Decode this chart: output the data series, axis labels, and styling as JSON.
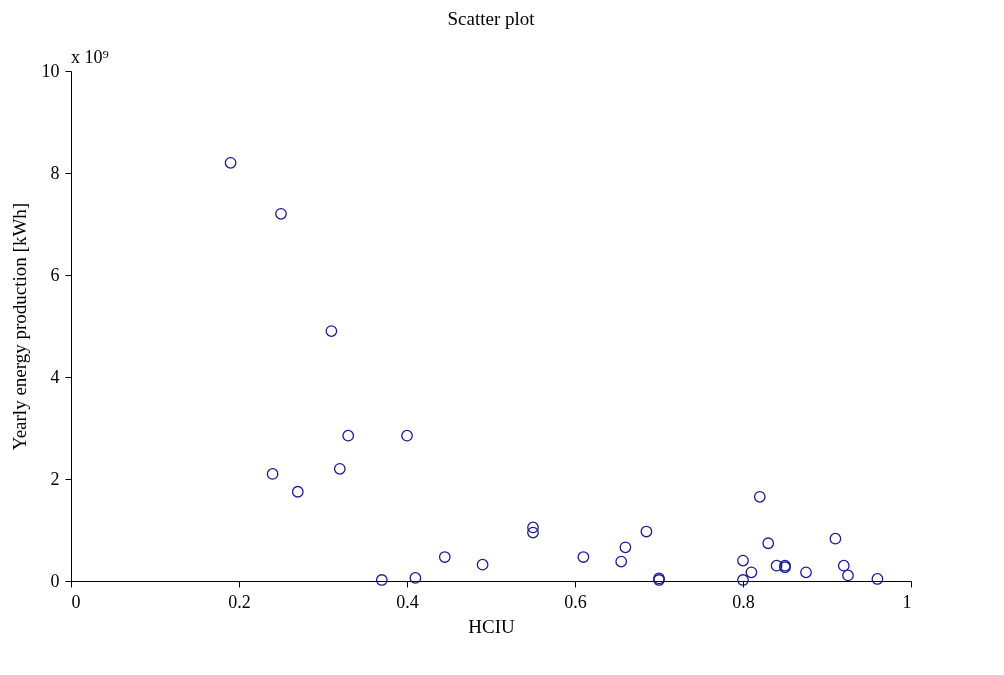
{
  "chart_data": {
    "type": "scatter",
    "title": "Scatter plot",
    "xlabel": "HCIU",
    "ylabel": "Yearly energy production [kWh]",
    "annotations": [
      "x 10⁹"
    ],
    "x": [
      0.19,
      0.25,
      0.31,
      0.24,
      0.27,
      0.32,
      0.33,
      0.4,
      0.37,
      0.41,
      0.445,
      0.49,
      0.55,
      0.55,
      0.61,
      0.655,
      0.66,
      0.685,
      0.7,
      0.7,
      0.8,
      0.8,
      0.81,
      0.82,
      0.83,
      0.84,
      0.85,
      0.85,
      0.875,
      0.91,
      0.92,
      0.925,
      0.96
    ],
    "series": [
      {
        "color": "#1a1a8c",
        "values": [
          8.2,
          7.2,
          4.9,
          2.1,
          1.75,
          2.2,
          2.85,
          2.85,
          0.02,
          0.06,
          0.47,
          0.32,
          1.05,
          0.95,
          0.47,
          0.38,
          0.66,
          0.97,
          0.02,
          0.05,
          0.4,
          0.02,
          0.17,
          1.65,
          0.74,
          0.3,
          0.3,
          0.27,
          0.17,
          0.83,
          0.3,
          0.11,
          0.04
        ]
      }
    ],
    "xlim": [
      0,
      1
    ],
    "xticks": [
      0,
      0.2,
      0.4,
      0.6,
      0.8,
      1
    ],
    "ylim": [
      0,
      10
    ],
    "yticks": [
      0,
      2,
      4,
      6,
      8,
      10
    ],
    "grid": false,
    "legend": false,
    "marker": "circle"
  }
}
